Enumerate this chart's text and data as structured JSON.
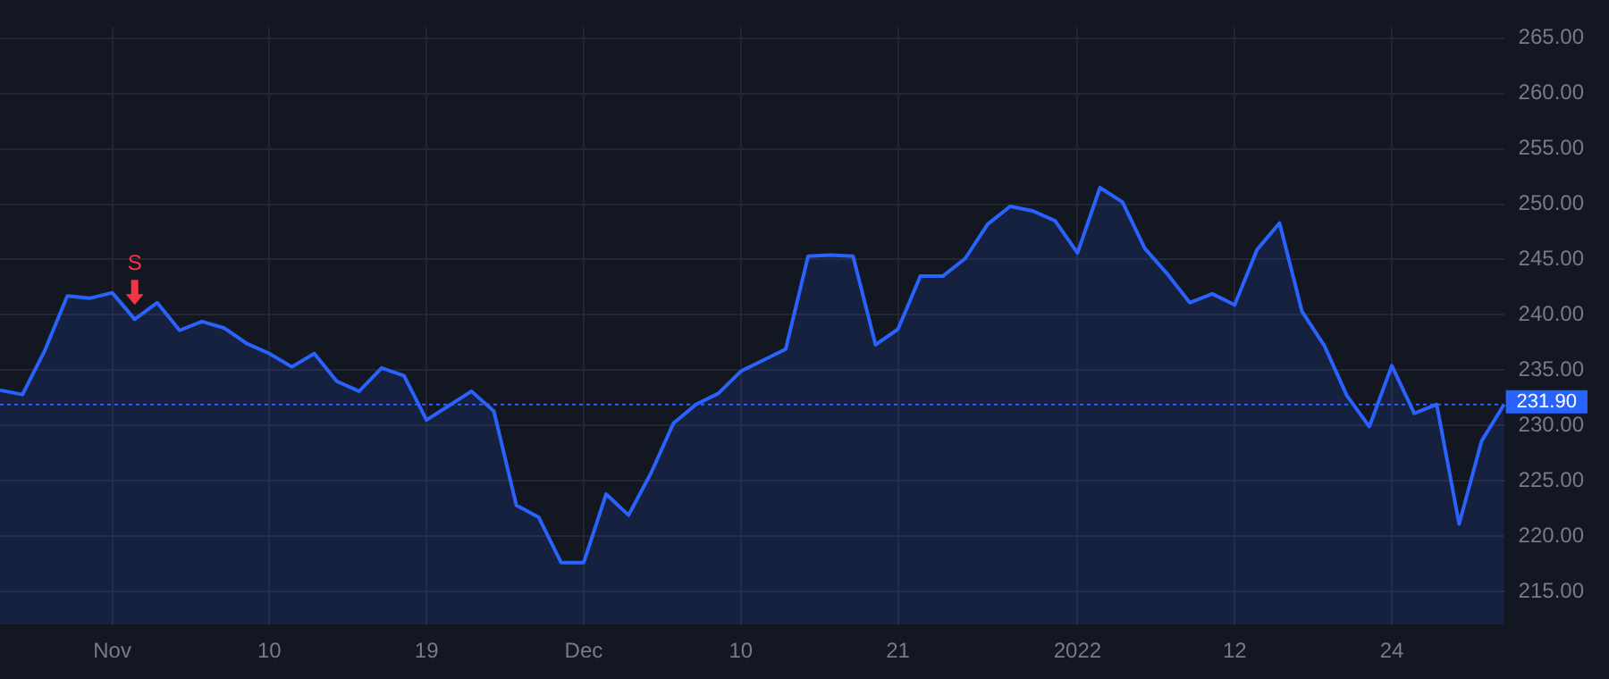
{
  "chart_data": {
    "type": "area",
    "categories": [
      null,
      null,
      null,
      null,
      null,
      "Nov",
      null,
      null,
      null,
      null,
      null,
      null,
      "10",
      null,
      null,
      null,
      null,
      null,
      null,
      "19",
      null,
      null,
      null,
      null,
      null,
      null,
      "Dec",
      null,
      null,
      null,
      null,
      null,
      null,
      "10",
      null,
      null,
      null,
      null,
      null,
      null,
      "21",
      null,
      null,
      null,
      null,
      null,
      null,
      null,
      "2022",
      null,
      null,
      null,
      null,
      null,
      null,
      "12",
      null,
      null,
      null,
      null,
      null,
      null,
      "24",
      null,
      null,
      null,
      null,
      null
    ],
    "series": [
      {
        "color": "#2962ff",
        "values": [
          233.2,
          232.8,
          236.8,
          241.7,
          241.5,
          242.0,
          239.6,
          241.1,
          238.6,
          239.4,
          238.8,
          237.4,
          236.5,
          235.3,
          236.5,
          234.0,
          233.1,
          235.2,
          234.5,
          230.5,
          231.8,
          233.1,
          231.3,
          222.8,
          221.7,
          217.6,
          217.6,
          223.8,
          221.9,
          225.7,
          230.2,
          231.9,
          232.9,
          234.9,
          235.9,
          236.9,
          245.3,
          245.4,
          245.3,
          237.3,
          238.7,
          243.5,
          243.5,
          245.1,
          248.2,
          249.8,
          249.4,
          248.5,
          245.6,
          251.5,
          250.2,
          246.0,
          243.7,
          241.1,
          241.9,
          240.9,
          245.9,
          248.3,
          240.3,
          237.2,
          232.7,
          229.9,
          235.4,
          231.1,
          231.9,
          221.1,
          228.6,
          231.9
        ]
      }
    ],
    "ylim": [
      212,
      266
    ],
    "yticks": [
      {
        "value": 215,
        "label": "215.00"
      },
      {
        "value": 220,
        "label": "220.00"
      },
      {
        "value": 225,
        "label": "225.00"
      },
      {
        "value": 230,
        "label": "230.00"
      },
      {
        "value": 235,
        "label": "235.00"
      },
      {
        "value": 240,
        "label": "240.00"
      },
      {
        "value": 245,
        "label": "245.00"
      },
      {
        "value": 250,
        "label": "250.00"
      },
      {
        "value": 255,
        "label": "255.00"
      },
      {
        "value": 260,
        "label": "260.00"
      },
      {
        "value": 265,
        "label": "265.00"
      }
    ],
    "grid": true,
    "legend": false,
    "marker": "none",
    "line_style": "solid",
    "ref_lines": [
      {
        "axis": "y",
        "value": 231.9,
        "label": "231.90",
        "color": "#2962ff",
        "line_style": "dotted"
      }
    ],
    "annotations": [
      {
        "text": "S",
        "y": 239.6
      }
    ]
  }
}
